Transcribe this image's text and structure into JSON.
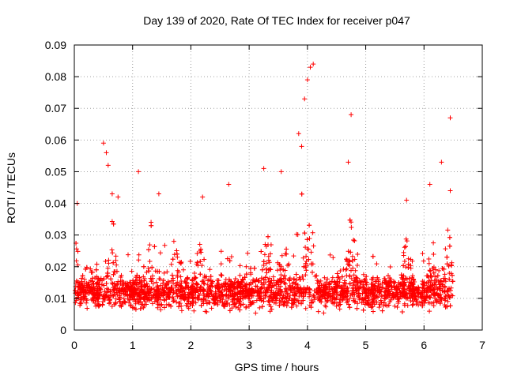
{
  "chart_data": {
    "type": "scatter",
    "title": "Day 139 of 2020, Rate Of TEC Index for receiver p047",
    "xlabel": "GPS time / hours",
    "ylabel": "ROTI / TECUs",
    "xlim": [
      0,
      7
    ],
    "ylim": [
      0,
      0.09
    ],
    "x_ticks": [
      0,
      1,
      2,
      3,
      4,
      5,
      6,
      7
    ],
    "x_tick_labels": [
      "0",
      "1",
      "2",
      "3",
      "4",
      "5",
      "6",
      "7"
    ],
    "y_ticks": [
      0,
      0.01,
      0.02,
      0.03,
      0.04,
      0.05,
      0.06,
      0.07,
      0.08,
      0.09
    ],
    "y_tick_labels": [
      "0",
      "0.01",
      "0.02",
      "0.03",
      "0.04",
      "0.05",
      "0.06",
      "0.07",
      "0.08",
      "0.09"
    ],
    "grid": true,
    "marker": "+",
    "color": "#ff0000",
    "series": [
      {
        "name": "ROTI",
        "x_range": [
          0,
          6.5
        ],
        "baseline_band": [
          0.005,
          0.02
        ],
        "typical_value": 0.012,
        "notable_points": [
          {
            "x": 0.05,
            "y": 0.04
          },
          {
            "x": 0.5,
            "y": 0.059
          },
          {
            "x": 0.55,
            "y": 0.056
          },
          {
            "x": 0.58,
            "y": 0.052
          },
          {
            "x": 0.65,
            "y": 0.043
          },
          {
            "x": 0.75,
            "y": 0.042
          },
          {
            "x": 1.1,
            "y": 0.05
          },
          {
            "x": 1.45,
            "y": 0.043
          },
          {
            "x": 2.2,
            "y": 0.042
          },
          {
            "x": 2.65,
            "y": 0.046
          },
          {
            "x": 3.25,
            "y": 0.051
          },
          {
            "x": 3.55,
            "y": 0.05
          },
          {
            "x": 3.85,
            "y": 0.062
          },
          {
            "x": 3.9,
            "y": 0.058
          },
          {
            "x": 3.95,
            "y": 0.073
          },
          {
            "x": 4.0,
            "y": 0.079
          },
          {
            "x": 4.05,
            "y": 0.083
          },
          {
            "x": 4.1,
            "y": 0.084
          },
          {
            "x": 4.75,
            "y": 0.068
          },
          {
            "x": 4.7,
            "y": 0.053
          },
          {
            "x": 5.7,
            "y": 0.041
          },
          {
            "x": 6.1,
            "y": 0.046
          },
          {
            "x": 6.3,
            "y": 0.053
          },
          {
            "x": 6.45,
            "y": 0.067
          },
          {
            "x": 6.45,
            "y": 0.044
          }
        ],
        "activity_bursts": [
          {
            "x": 0.05,
            "amp": 0.02
          },
          {
            "x": 0.65,
            "amp": 0.025
          },
          {
            "x": 1.3,
            "amp": 0.022
          },
          {
            "x": 1.75,
            "amp": 0.016
          },
          {
            "x": 2.15,
            "amp": 0.022
          },
          {
            "x": 3.3,
            "amp": 0.02
          },
          {
            "x": 3.6,
            "amp": 0.02
          },
          {
            "x": 3.9,
            "amp": 0.035
          },
          {
            "x": 4.05,
            "amp": 0.035
          },
          {
            "x": 4.75,
            "amp": 0.025
          },
          {
            "x": 5.7,
            "amp": 0.02
          },
          {
            "x": 6.15,
            "amp": 0.02
          },
          {
            "x": 6.4,
            "amp": 0.02
          }
        ]
      }
    ]
  }
}
